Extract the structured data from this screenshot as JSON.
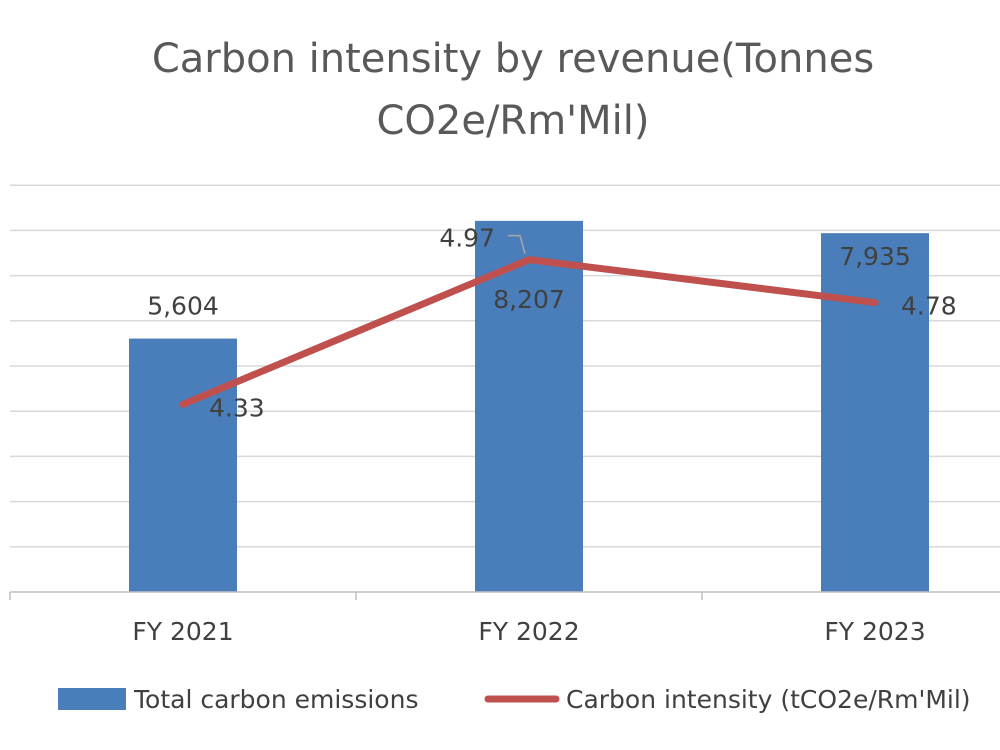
{
  "chart_data": {
    "type": "bar",
    "title": "Carbon intensity by revenue(Tonnes CO2e/Rm'Mil)",
    "title_lines": [
      "Carbon intensity by revenue(Tonnes",
      "CO2e/Rm'Mil)"
    ],
    "categories": [
      "FY 2021",
      "FY 2022",
      "FY 2023"
    ],
    "ylim": [
      0,
      9000
    ],
    "y2lim": [
      3.5,
      5.3
    ],
    "grid": true,
    "legend_position": "bottom",
    "series": [
      {
        "name": "Total carbon emissions",
        "type": "bar",
        "axis": "primary",
        "color": "#4A7EBB",
        "values": [
          5604,
          8207,
          7935
        ],
        "labels": [
          "5,604",
          "8,207",
          "7,935"
        ]
      },
      {
        "name": "Carbon intensity (tCO2e/Rm'Mil)",
        "type": "line",
        "axis": "secondary",
        "color": "#C0504D",
        "values": [
          4.33,
          4.97,
          4.78
        ],
        "labels": [
          "4.33",
          "4.97",
          "4.78"
        ]
      }
    ],
    "colors": {
      "gridline": "#D9D9D9",
      "axis": "#BFBFBF",
      "text": "#404040",
      "title": "#595959"
    }
  }
}
